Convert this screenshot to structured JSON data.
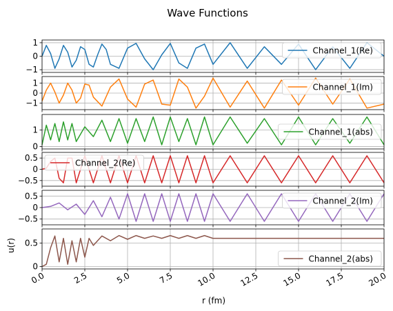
{
  "title": "Wave Functions",
  "xlabel": "r (fm)",
  "ylabel": "u(r)",
  "xlim": [
    0,
    20
  ],
  "xticks": [
    "0.0",
    "2.5",
    "5.0",
    "7.5",
    "10.0",
    "12.5",
    "15.0",
    "17.5",
    "20.0"
  ],
  "chart_data": [
    {
      "type": "line",
      "series": [
        {
          "name": "Channel_1(Re)",
          "color": "#1f77b4",
          "x": [
            0,
            0.25,
            0.5,
            0.75,
            1,
            1.25,
            1.5,
            1.75,
            2,
            2.25,
            2.5,
            2.75,
            3,
            3.25,
            3.5,
            3.75,
            4,
            4.5,
            5,
            5.5,
            6,
            6.5,
            7,
            7.5,
            8,
            8.5,
            9,
            9.5,
            10,
            11,
            12,
            13,
            14,
            15,
            16,
            17,
            18,
            19,
            20
          ],
          "y": [
            0,
            0.8,
            0.2,
            -0.9,
            -0.2,
            0.8,
            0.3,
            -0.8,
            -0.3,
            0.7,
            0.5,
            -0.6,
            -0.8,
            0.1,
            0.9,
            0.5,
            -0.6,
            -0.9,
            0.6,
            0.95,
            -0.2,
            -1.0,
            0.1,
            0.95,
            -0.5,
            -0.9,
            0.6,
            0.9,
            -0.6,
            1.0,
            -0.9,
            0.7,
            -0.6,
            0.9,
            -1.0,
            0.7,
            -0.9,
            1.0,
            0.0
          ]
        }
      ],
      "ylim": [
        -1.2,
        1.2
      ],
      "yticks": [
        1,
        0,
        -1
      ],
      "legend": "top-right"
    },
    {
      "type": "line",
      "series": [
        {
          "name": "Channel_1(Im)",
          "color": "#ff7f0e",
          "x": [
            0,
            0.25,
            0.5,
            0.75,
            1,
            1.25,
            1.5,
            1.75,
            2,
            2.25,
            2.5,
            2.75,
            3,
            3.5,
            4,
            4.5,
            5,
            5.5,
            6,
            6.5,
            7,
            7.5,
            8,
            8.5,
            9,
            9.5,
            10,
            11,
            12,
            13,
            14,
            15,
            16,
            17,
            18,
            19,
            20
          ],
          "y": [
            -0.8,
            0.3,
            1.0,
            0.1,
            -1.0,
            -0.2,
            1.0,
            0.3,
            -1.0,
            -0.5,
            0.9,
            0.8,
            -0.4,
            -1.3,
            0.6,
            1.4,
            -0.6,
            -1.4,
            0.9,
            1.3,
            -1.1,
            -1.2,
            1.4,
            0.6,
            -1.5,
            -0.3,
            1.5,
            -1.4,
            1.2,
            -1.5,
            1.3,
            -1.2,
            1.5,
            -1.1,
            1.4,
            -1.5,
            -1.1
          ]
        }
      ],
      "ylim": [
        -1.65,
        1.65
      ],
      "yticks": [
        1,
        0,
        -1
      ],
      "legend": "top-right"
    },
    {
      "type": "line",
      "series": [
        {
          "name": "Channel_1(abs)",
          "color": "#2ca02c",
          "x": [
            0,
            0.25,
            0.5,
            0.75,
            1,
            1.25,
            1.5,
            1.75,
            2,
            2.5,
            3,
            3.5,
            4,
            4.5,
            5,
            5.5,
            6,
            6.5,
            7,
            7.5,
            8,
            8.5,
            9,
            9.5,
            10,
            11,
            12,
            13,
            14,
            15,
            16,
            17,
            18,
            19,
            20
          ],
          "y": [
            0.1,
            1.3,
            0.4,
            1.4,
            0.3,
            1.5,
            0.4,
            1.4,
            0.3,
            1.2,
            0.6,
            1.6,
            0.3,
            1.7,
            0.2,
            1.7,
            0.3,
            1.8,
            0.1,
            1.8,
            0.3,
            1.7,
            0.1,
            1.8,
            0.1,
            1.8,
            0.2,
            1.7,
            0.1,
            1.8,
            0.1,
            1.7,
            0.2,
            1.8,
            0.1
          ]
        }
      ],
      "ylim": [
        -0.15,
        1.95
      ],
      "yticks": [
        1,
        0
      ],
      "legend": "center-right"
    },
    {
      "type": "line",
      "series": [
        {
          "name": "Channel_2(Re)",
          "color": "#d62728",
          "x": [
            0,
            0.25,
            0.5,
            0.75,
            1,
            1.25,
            1.5,
            1.75,
            2,
            2.5,
            3,
            3.5,
            4,
            4.5,
            5,
            5.5,
            6,
            6.5,
            7,
            7.5,
            8,
            8.5,
            9,
            9.5,
            10,
            11,
            12,
            13,
            14,
            15,
            16,
            17,
            18,
            19,
            20
          ],
          "y": [
            0,
            0.05,
            0.35,
            0.5,
            -0.4,
            -0.6,
            0.5,
            0.5,
            -0.6,
            0.6,
            -0.6,
            0.6,
            -0.6,
            0.6,
            -0.6,
            0.6,
            -0.6,
            0.6,
            -0.6,
            0.6,
            -0.6,
            0.6,
            -0.6,
            0.6,
            -0.6,
            0.6,
            -0.6,
            0.6,
            -0.6,
            0.6,
            -0.6,
            0.6,
            -0.6,
            0.6,
            -0.6
          ]
        }
      ],
      "ylim": [
        -0.75,
        0.75
      ],
      "yticks": [
        0.5,
        0.0,
        -0.5
      ],
      "legend": "top-left"
    },
    {
      "type": "line",
      "series": [
        {
          "name": "Channel_2(Im)",
          "color": "#9467bd",
          "x": [
            0,
            0.5,
            1,
            1.5,
            2,
            2.5,
            3,
            3.5,
            4,
            4.5,
            5,
            5.5,
            6,
            6.5,
            7,
            7.5,
            8,
            8.5,
            9,
            9.5,
            10,
            11,
            12,
            13,
            14,
            15,
            16,
            17,
            18,
            19,
            20
          ],
          "y": [
            0,
            0.05,
            0.2,
            -0.1,
            0.15,
            -0.3,
            0.3,
            -0.4,
            0.45,
            -0.5,
            0.6,
            -0.6,
            0.6,
            -0.6,
            0.6,
            -0.6,
            0.6,
            -0.6,
            0.6,
            -0.6,
            0.6,
            -0.6,
            0.6,
            -0.6,
            0.6,
            -0.6,
            0.6,
            -0.6,
            0.6,
            -0.6,
            0.6
          ]
        }
      ],
      "ylim": [
        -0.75,
        0.75
      ],
      "yticks": [
        0.5,
        0.0,
        -0.5
      ],
      "legend": "top-right"
    },
    {
      "type": "line",
      "series": [
        {
          "name": "Channel_2(abs)",
          "color": "#8c564b",
          "x": [
            0,
            0.25,
            0.5,
            0.75,
            1,
            1.25,
            1.5,
            1.75,
            2,
            2.25,
            2.5,
            2.75,
            3,
            3.5,
            4,
            4.5,
            5,
            5.5,
            6,
            6.5,
            7,
            7.5,
            8,
            8.5,
            9,
            9.5,
            9.99,
            10,
            12,
            14,
            16,
            18,
            20
          ],
          "y": [
            0,
            0.05,
            0.4,
            0.65,
            0.1,
            0.6,
            0.05,
            0.55,
            0.1,
            0.6,
            0.2,
            0.6,
            0.45,
            0.65,
            0.55,
            0.66,
            0.58,
            0.66,
            0.6,
            0.65,
            0.6,
            0.66,
            0.6,
            0.66,
            0.6,
            0.66,
            0.6,
            0.6,
            0.6,
            0.6,
            0.6,
            0.6,
            0.6
          ]
        }
      ],
      "ylim": [
        -0.05,
        0.8
      ],
      "yticks": [
        0.5,
        0.0
      ],
      "legend": "bottom-right"
    }
  ]
}
